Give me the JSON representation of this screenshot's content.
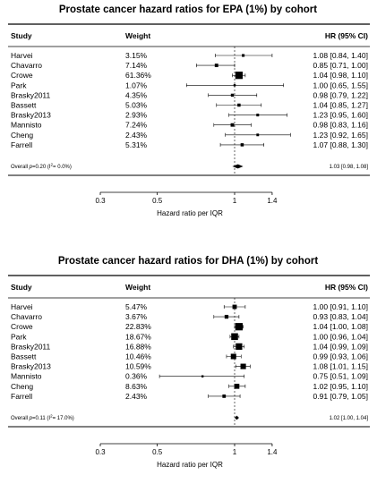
{
  "chart_data": [
    {
      "type": "forest",
      "title": "Prostate cancer hazard ratios for EPA (1%) by cohort",
      "headers": {
        "study": "Study",
        "weight": "Weight",
        "hr": "HR (95% CI)"
      },
      "xlabel": "Hazard ratio per IQR",
      "xscale": "log",
      "xticks": [
        "0.3",
        "0.5",
        "1",
        "1.4"
      ],
      "xlim": [
        0.3,
        1.4
      ],
      "reference_line": 1,
      "studies": [
        {
          "name": "Harvei",
          "weight": "3.15%",
          "hr": 1.08,
          "lo": 0.84,
          "hi": 1.4,
          "hr_text": "1.08 [0.84, 1.40]"
        },
        {
          "name": "Chavarro",
          "weight": "7.14%",
          "hr": 0.85,
          "lo": 0.71,
          "hi": 1.0,
          "hr_text": "0.85 [0.71, 1.00]"
        },
        {
          "name": "Crowe",
          "weight": "61.36%",
          "hr": 1.04,
          "lo": 0.98,
          "hi": 1.1,
          "hr_text": "1.04 [0.98, 1.10]"
        },
        {
          "name": "Park",
          "weight": "1.07%",
          "hr": 1.0,
          "lo": 0.65,
          "hi": 1.55,
          "hr_text": "1.00 [0.65, 1.55]"
        },
        {
          "name": "Brasky2011",
          "weight": "4.35%",
          "hr": 0.98,
          "lo": 0.79,
          "hi": 1.22,
          "hr_text": "0.98 [0.79, 1.22]"
        },
        {
          "name": "Bassett",
          "weight": "5.03%",
          "hr": 1.04,
          "lo": 0.85,
          "hi": 1.27,
          "hr_text": "1.04 [0.85, 1.27]"
        },
        {
          "name": "Brasky2013",
          "weight": "2.93%",
          "hr": 1.23,
          "lo": 0.95,
          "hi": 1.6,
          "hr_text": "1.23 [0.95, 1.60]"
        },
        {
          "name": "Mannisto",
          "weight": "7.24%",
          "hr": 0.98,
          "lo": 0.83,
          "hi": 1.16,
          "hr_text": "0.98 [0.83, 1.16]"
        },
        {
          "name": "Cheng",
          "weight": "2.43%",
          "hr": 1.23,
          "lo": 0.92,
          "hi": 1.65,
          "hr_text": "1.23 [0.92, 1.65]"
        },
        {
          "name": "Farrell",
          "weight": "5.31%",
          "hr": 1.07,
          "lo": 0.88,
          "hi": 1.3,
          "hr_text": "1.07 [0.88, 1.30]"
        }
      ],
      "overall": {
        "p": "0.20",
        "i2": "0.0%",
        "hr": 1.03,
        "lo": 0.98,
        "hi": 1.08,
        "hr_text": "1.03 [0.98, 1.08]"
      }
    },
    {
      "type": "forest",
      "title": "Prostate cancer hazard ratios for DHA (1%) by cohort",
      "headers": {
        "study": "Study",
        "weight": "Weight",
        "hr": "HR (95% CI)"
      },
      "xlabel": "Hazard ratio per IQR",
      "xscale": "log",
      "xticks": [
        "0.3",
        "0.5",
        "1",
        "1.4"
      ],
      "xlim": [
        0.3,
        1.4
      ],
      "reference_line": 1,
      "studies": [
        {
          "name": "Harvei",
          "weight": "5.47%",
          "hr": 1.0,
          "lo": 0.91,
          "hi": 1.1,
          "hr_text": "1.00 [0.91, 1.10]"
        },
        {
          "name": "Chavarro",
          "weight": "3.67%",
          "hr": 0.93,
          "lo": 0.83,
          "hi": 1.04,
          "hr_text": "0.93 [0.83, 1.04]"
        },
        {
          "name": "Crowe",
          "weight": "22.83%",
          "hr": 1.04,
          "lo": 1.0,
          "hi": 1.08,
          "hr_text": "1.04 [1.00, 1.08]"
        },
        {
          "name": "Park",
          "weight": "18.67%",
          "hr": 1.0,
          "lo": 0.96,
          "hi": 1.04,
          "hr_text": "1.00 [0.96, 1.04]"
        },
        {
          "name": "Brasky2011",
          "weight": "16.88%",
          "hr": 1.04,
          "lo": 0.99,
          "hi": 1.09,
          "hr_text": "1.04 [0.99, 1.09]"
        },
        {
          "name": "Bassett",
          "weight": "10.46%",
          "hr": 0.99,
          "lo": 0.93,
          "hi": 1.06,
          "hr_text": "0.99 [0.93, 1.06]"
        },
        {
          "name": "Brasky2013",
          "weight": "10.59%",
          "hr": 1.08,
          "lo": 1.01,
          "hi": 1.15,
          "hr_text": "1.08 [1.01, 1.15]"
        },
        {
          "name": "Mannisto",
          "weight": "0.36%",
          "hr": 0.75,
          "lo": 0.51,
          "hi": 1.09,
          "hr_text": "0.75 [0.51, 1.09]"
        },
        {
          "name": "Cheng",
          "weight": "8.63%",
          "hr": 1.02,
          "lo": 0.95,
          "hi": 1.1,
          "hr_text": "1.02 [0.95, 1.10]"
        },
        {
          "name": "Farrell",
          "weight": "2.43%",
          "hr": 0.91,
          "lo": 0.79,
          "hi": 1.05,
          "hr_text": "0.91 [0.79, 1.05]"
        }
      ],
      "overall": {
        "p": "0.11",
        "i2": "17.0%",
        "hr": 1.02,
        "lo": 1.0,
        "hi": 1.04,
        "hr_text": "1.02 [1.00, 1.04]"
      }
    }
  ]
}
